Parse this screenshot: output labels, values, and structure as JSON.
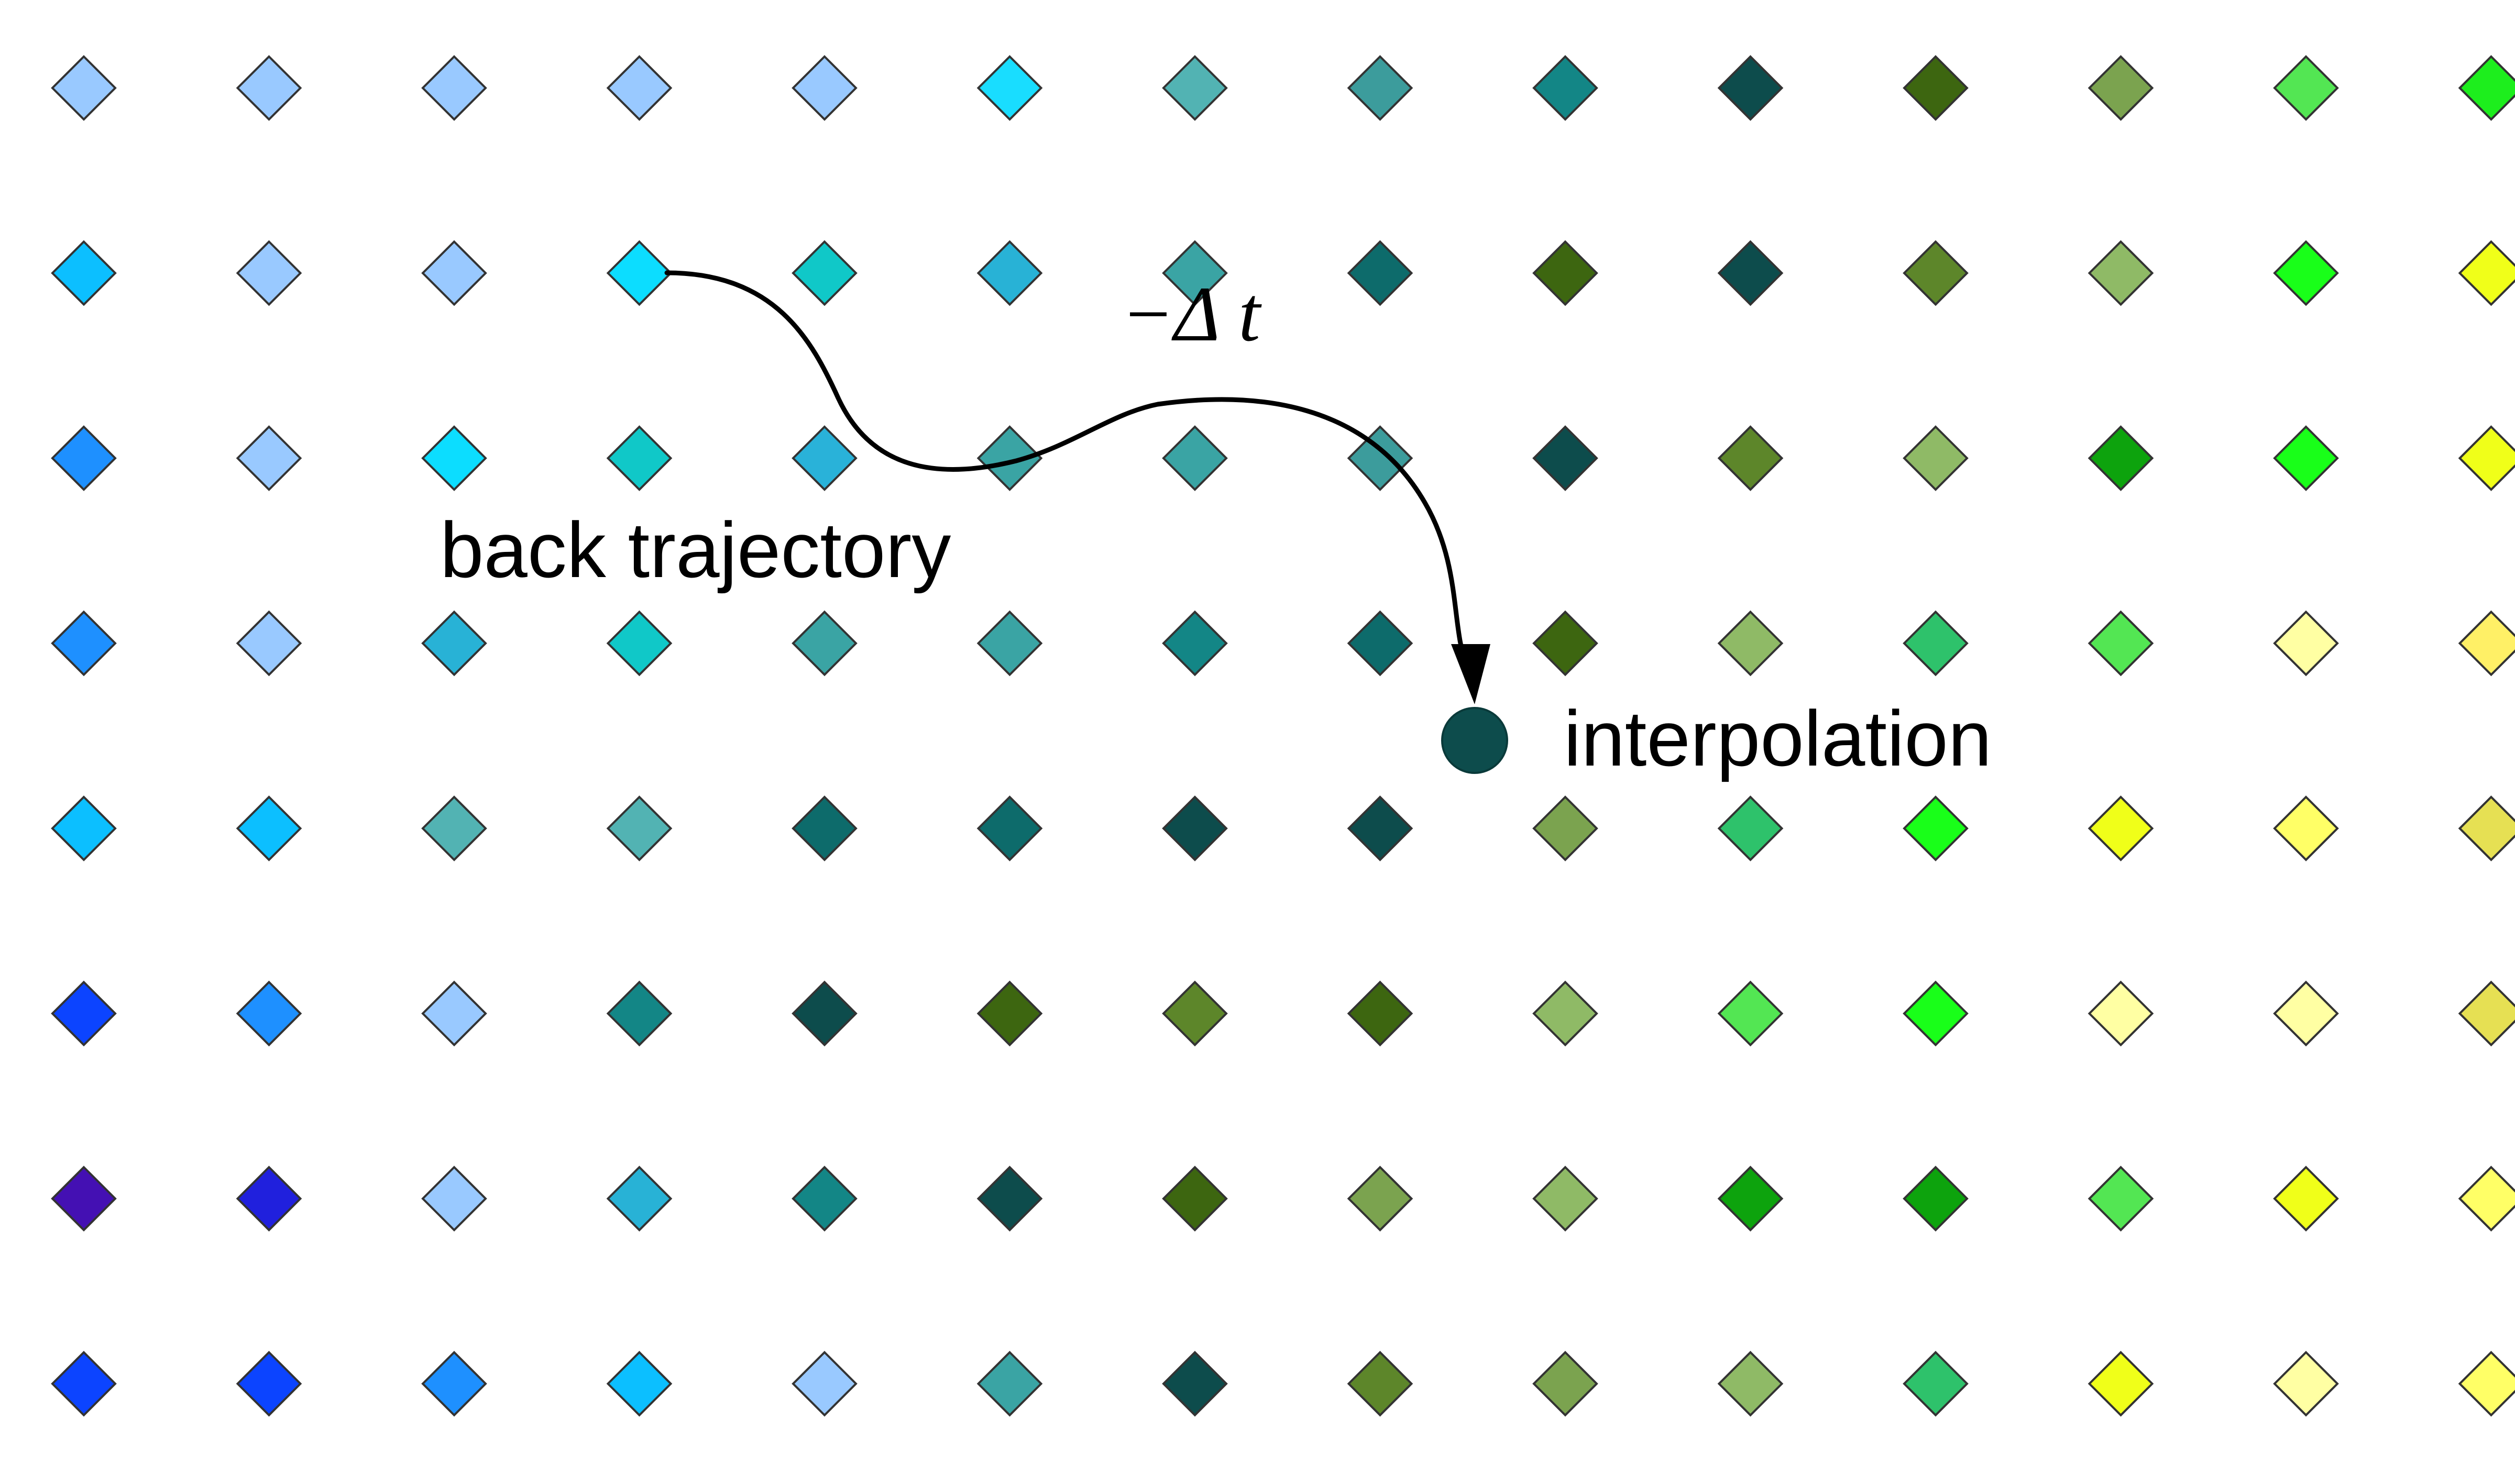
{
  "labels": {
    "back_trajectory": "back trajectory",
    "interpolation": "interpolation",
    "time_step": "−Δ t"
  },
  "grid": {
    "colors": [
      [
        "#99c9ff",
        "#99c9ff",
        "#99c9ff",
        "#99c9ff",
        "#99c9ff",
        "#19ddff",
        "#52b3b3",
        "#3c9c9c",
        "#138686",
        "#0d4c4c",
        "#3d6610",
        "#7ba34f",
        "#53e653",
        "#1dee1d"
      ],
      [
        "#0cbfff",
        "#99c9ff",
        "#99c9ff",
        "#0cddff",
        "#10c8c8",
        "#28b2d6",
        "#3aa4a4",
        "#0d6b6b",
        "#3d6610",
        "#0d4c4c",
        "#5d862a",
        "#8fba66",
        "#19ff19",
        "#f0ff19"
      ],
      [
        "#1e90ff",
        "#99c9ff",
        "#0cddff",
        "#10c8c8",
        "#29b2d9",
        "#3aa4a4",
        "#3aa4a4",
        "#3c9c9c",
        "#0d4c4c",
        "#5d862a",
        "#8fba66",
        "#0da30d",
        "#19ff19",
        "#f0ff19"
      ],
      [
        "#1e90ff",
        "#99c9ff",
        "#28b2d6",
        "#10c8c8",
        "#3aa4a4",
        "#3aa4a4",
        "#138686",
        "#0d6b6b",
        "#3d6610",
        "#8fba66",
        "#2ec26b",
        "#53e653",
        "#ffffa3",
        "#fff066"
      ],
      [
        "#0cbfff",
        "#0cbfff",
        "#52b3b3",
        "#52b3b3",
        "#0d6b6b",
        "#0d6b6b",
        "#0d4c4c",
        "#0d4c4c",
        "#7ba34f",
        "#2ec26b",
        "#19ff19",
        "#f0ff19",
        "#ffff66",
        "#e6e053"
      ],
      [
        "#0c44ff",
        "#1e90ff",
        "#99c9ff",
        "#138686",
        "#0d4c4c",
        "#3d6610",
        "#5d862a",
        "#3d6610",
        "#8fba66",
        "#53e653",
        "#19ff19",
        "#ffffa3",
        "#ffffa3",
        "#e6e053"
      ],
      [
        "#4410b3",
        "#2020dd",
        "#99c9ff",
        "#28b2d6",
        "#138686",
        "#0d4c4c",
        "#3d6610",
        "#7ba34f",
        "#8fba66",
        "#0da30d",
        "#0da30d",
        "#53e653",
        "#f0ff19",
        "#ffff66"
      ],
      [
        "#0c44ff",
        "#0c44ff",
        "#1e90ff",
        "#0cbfff",
        "#99c9ff",
        "#3aa4a4",
        "#0d4c4c",
        "#5d862a",
        "#7ba34f",
        "#8fba66",
        "#2ec26b",
        "#f0ff19",
        "#ffffa3",
        "#ffff66"
      ]
    ]
  },
  "marker": {
    "color": "#0d4c4c"
  }
}
